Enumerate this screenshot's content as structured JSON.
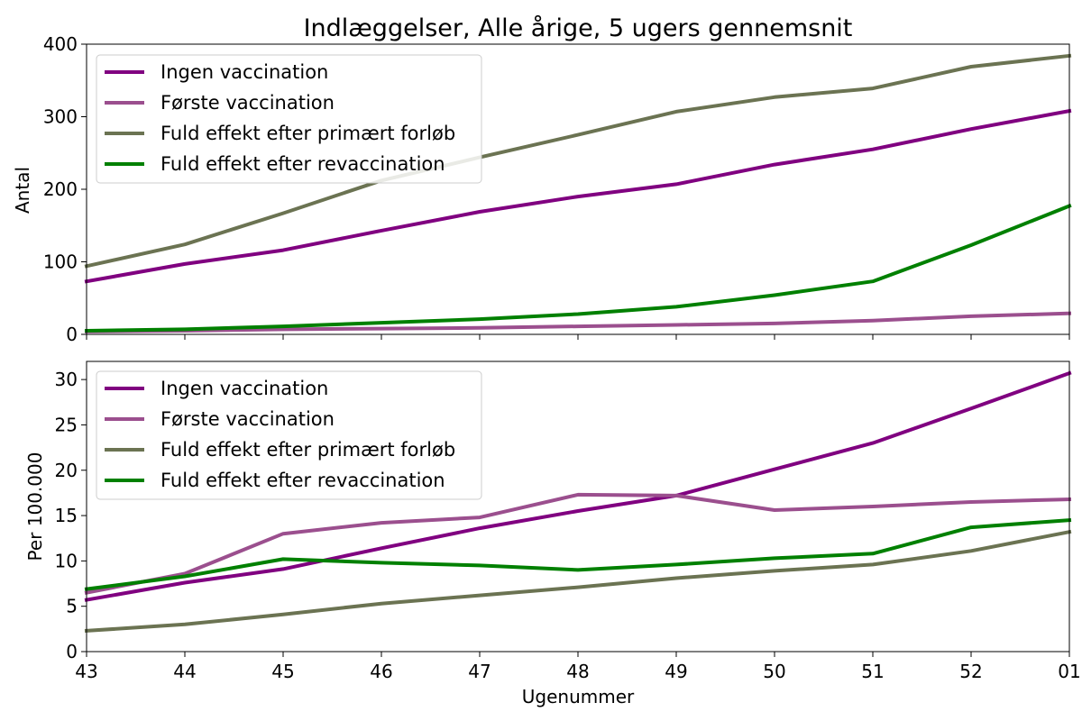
{
  "chart_data": [
    {
      "type": "line",
      "title": "Indlæggelser, Alle årige, 5 ugers gennemsnit",
      "xlabel": "",
      "ylabel": "Antal",
      "categories": [
        "43",
        "44",
        "45",
        "46",
        "47",
        "48",
        "49",
        "50",
        "51",
        "52",
        "01"
      ],
      "ylim": [
        0,
        400
      ],
      "yticks": [
        "0",
        "100",
        "200",
        "300",
        "400"
      ],
      "grid": false,
      "legend_position": "upper-left",
      "series": [
        {
          "name": "Ingen vaccination",
          "color": "#800080",
          "values": [
            73,
            97,
            116,
            143,
            169,
            190,
            207,
            234,
            255,
            283,
            308
          ]
        },
        {
          "name": "Første vaccination",
          "color": "#9b4f8e",
          "values": [
            4,
            5,
            7,
            8,
            9,
            11,
            13,
            15,
            19,
            25,
            29
          ]
        },
        {
          "name": "Fuld effekt efter primært forløb",
          "color": "#6b7352",
          "values": [
            94,
            124,
            167,
            212,
            244,
            275,
            307,
            327,
            339,
            369,
            384
          ]
        },
        {
          "name": "Fuld effekt efter revaccination",
          "color": "#008000",
          "values": [
            5,
            7,
            11,
            16,
            21,
            28,
            38,
            54,
            73,
            123,
            177
          ]
        }
      ]
    },
    {
      "type": "line",
      "title": "",
      "xlabel": "Ugenummer",
      "ylabel": "Per 100.000",
      "categories": [
        "43",
        "44",
        "45",
        "46",
        "47",
        "48",
        "49",
        "50",
        "51",
        "52",
        "01"
      ],
      "ylim": [
        0,
        32
      ],
      "yticks": [
        "0",
        "5",
        "10",
        "15",
        "20",
        "25",
        "30"
      ],
      "grid": false,
      "legend_position": "upper-left",
      "series": [
        {
          "name": "Ingen vaccination",
          "color": "#800080",
          "values": [
            5.7,
            7.6,
            9.1,
            11.4,
            13.6,
            15.5,
            17.2,
            20.1,
            23.0,
            26.8,
            30.7
          ]
        },
        {
          "name": "Første vaccination",
          "color": "#9b4f8e",
          "values": [
            6.5,
            8.6,
            13.0,
            14.2,
            14.8,
            17.3,
            17.2,
            15.6,
            16.0,
            16.5,
            16.8
          ]
        },
        {
          "name": "Fuld effekt efter primært forløb",
          "color": "#6b7352",
          "values": [
            2.3,
            3.0,
            4.1,
            5.3,
            6.2,
            7.1,
            8.1,
            8.9,
            9.6,
            11.1,
            13.2
          ]
        },
        {
          "name": "Fuld effekt efter revaccination",
          "color": "#008000",
          "values": [
            6.9,
            8.3,
            10.2,
            9.8,
            9.5,
            9.0,
            9.6,
            10.3,
            10.8,
            13.7,
            14.5
          ]
        }
      ]
    }
  ]
}
